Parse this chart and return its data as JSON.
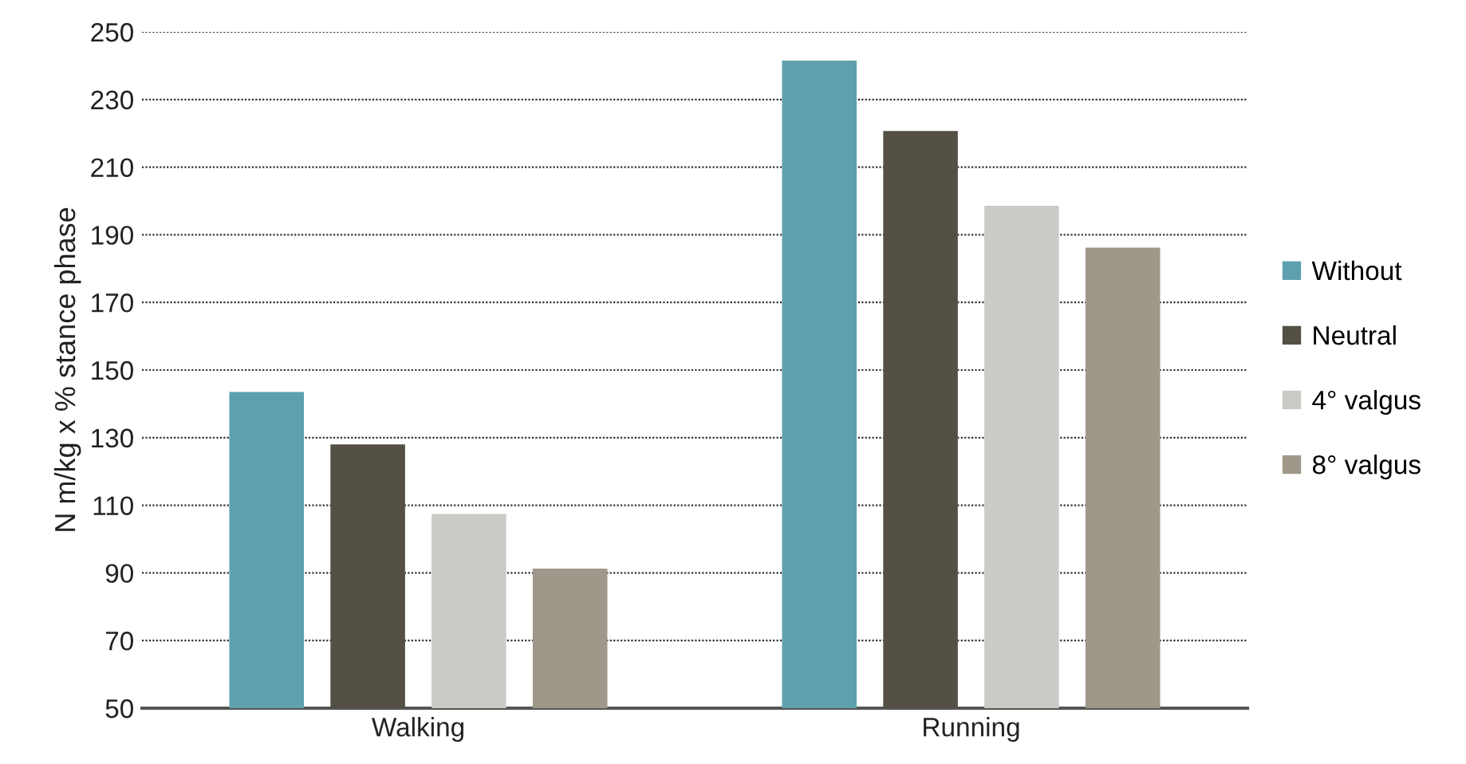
{
  "chart_data": {
    "type": "bar",
    "ylabel": "N m/kg x % stance phase",
    "categories": [
      "Walking",
      "Running"
    ],
    "series": [
      {
        "name": "Without",
        "color": "#5fa0ae",
        "values": [
          143.5,
          241.5
        ]
      },
      {
        "name": "Neutral",
        "color": "#545046",
        "values": [
          128,
          220.7
        ]
      },
      {
        "name": "4° valgus",
        "color": "#cbcac6",
        "values": [
          107.4,
          198.6
        ]
      },
      {
        "name": "8° valgus",
        "color": "#9f9789",
        "values": [
          91.3,
          186.2
        ]
      }
    ],
    "ylim": [
      50,
      250
    ],
    "yticks": [
      50,
      70,
      90,
      110,
      130,
      150,
      170,
      190,
      210,
      230,
      250
    ],
    "grid": "y",
    "legend": "right"
  }
}
